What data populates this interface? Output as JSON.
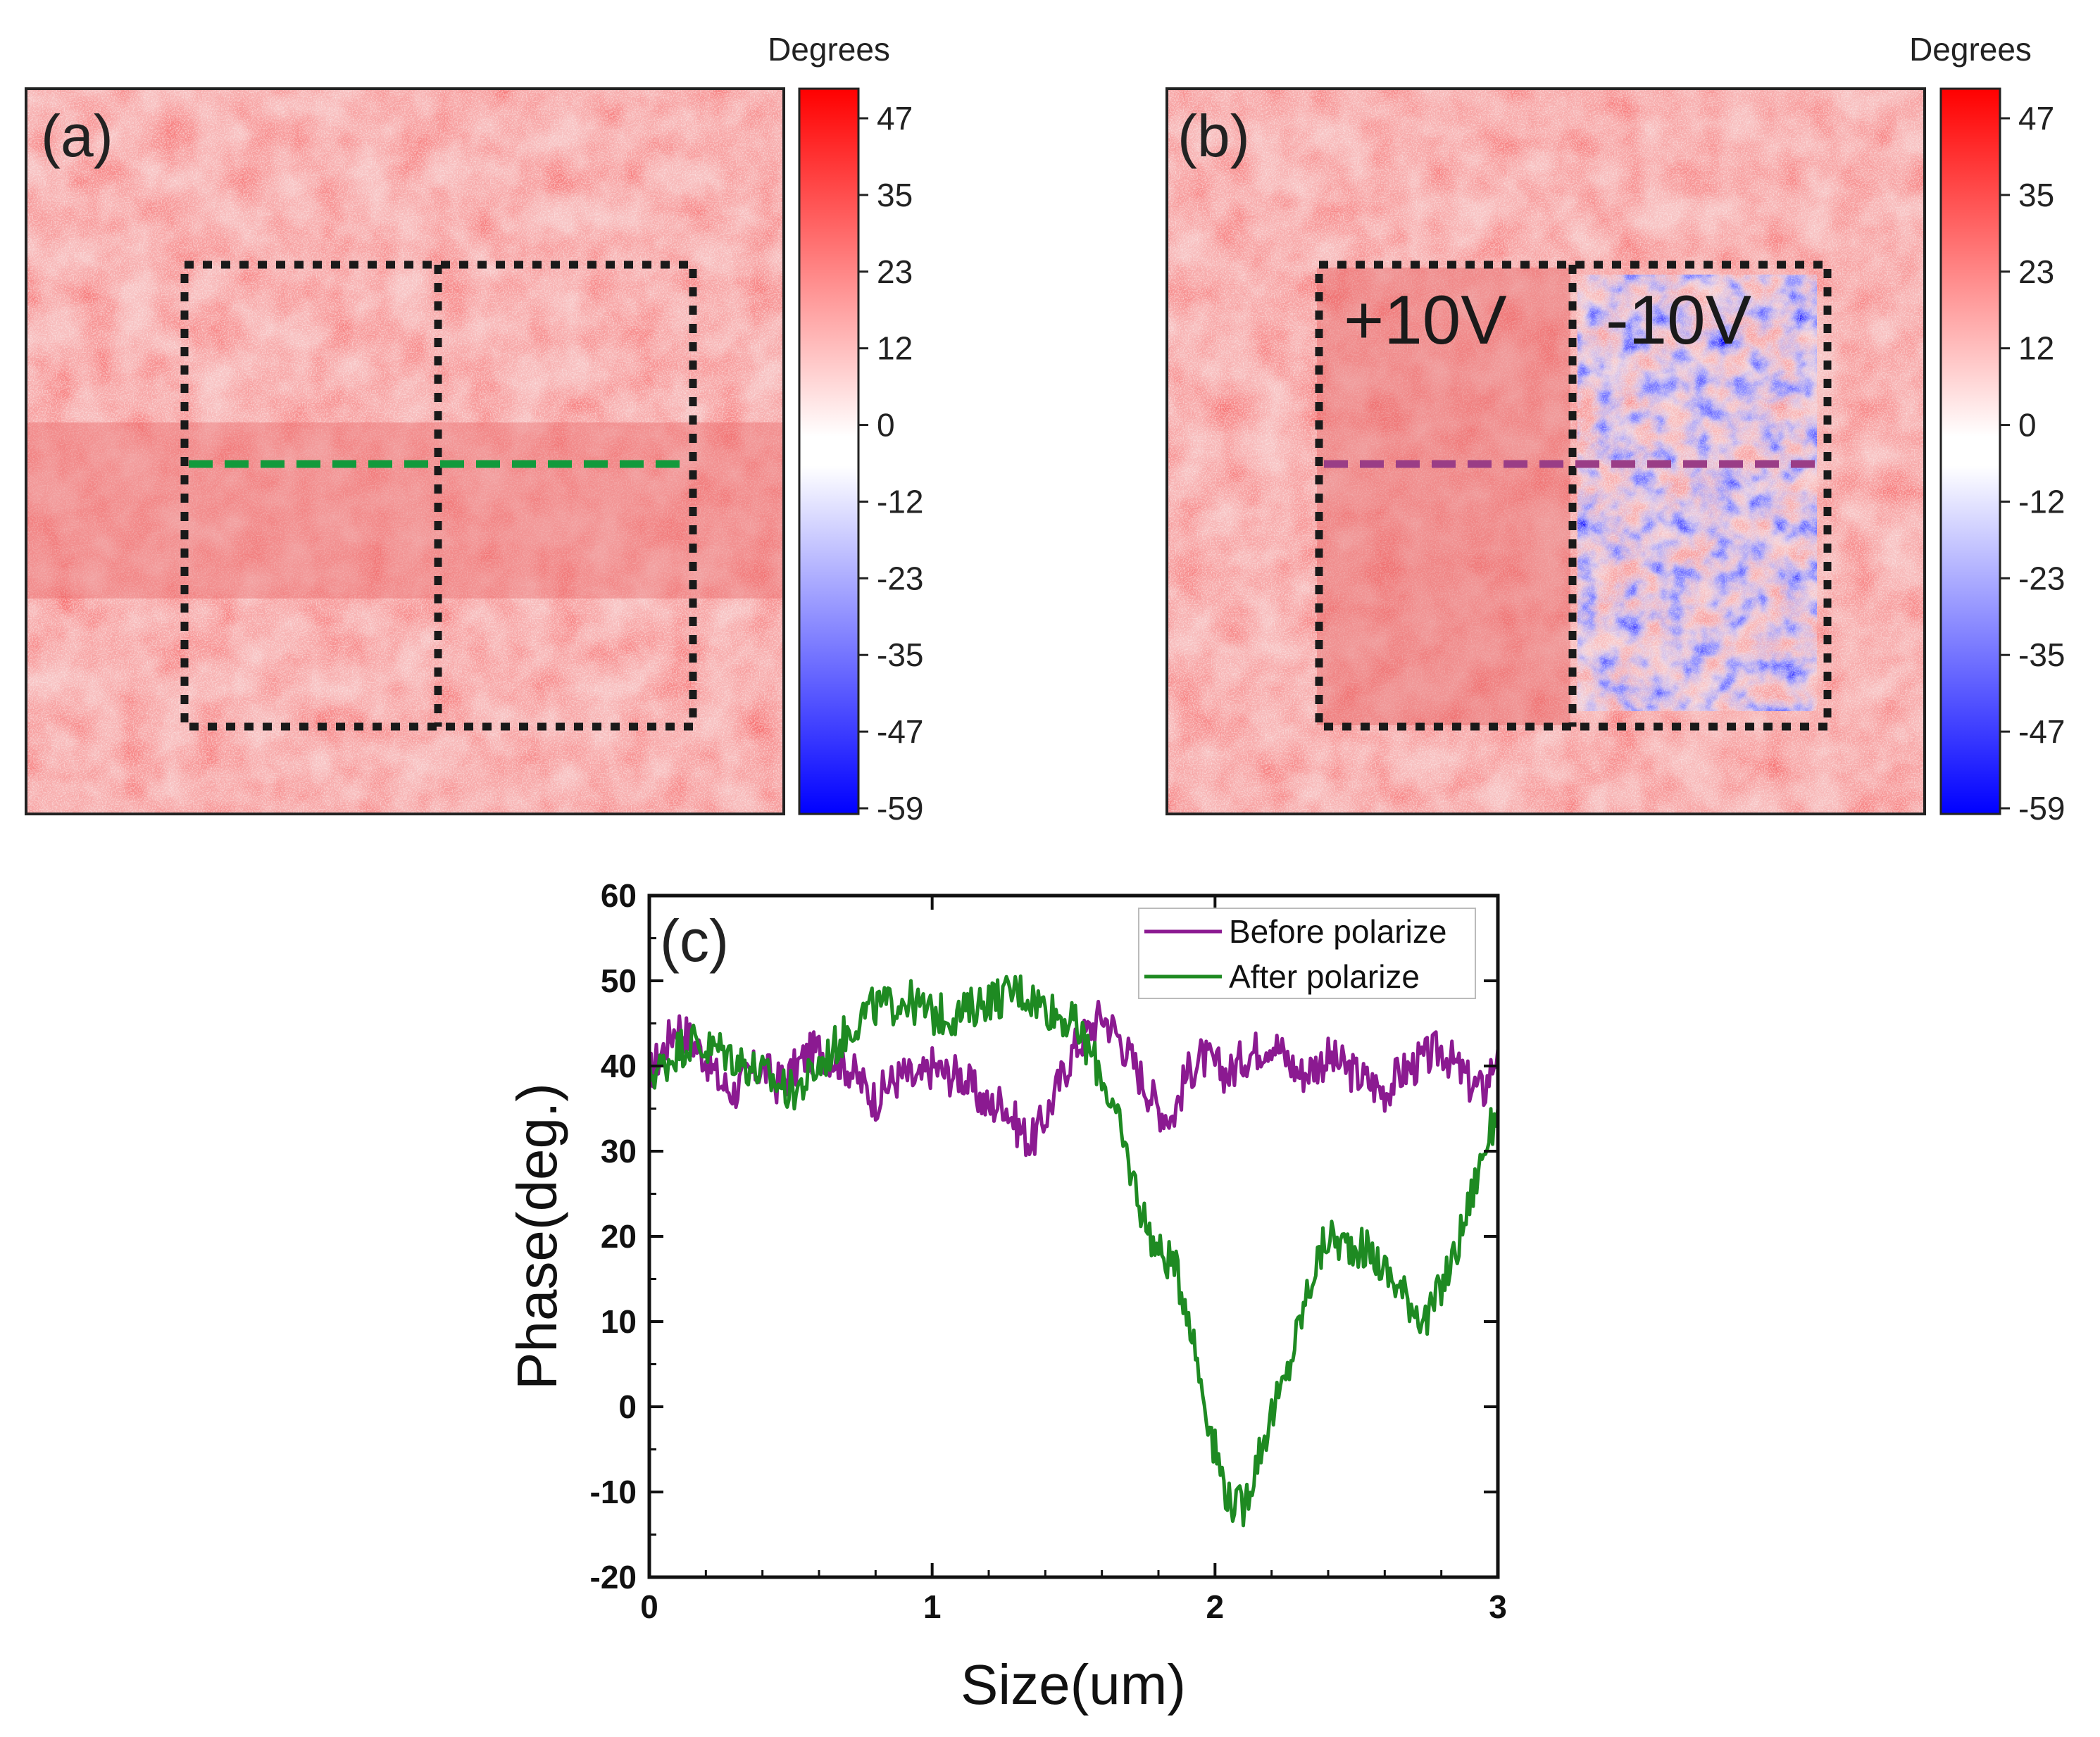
{
  "panels": {
    "a": {
      "label": "(a)",
      "colorbar_title": "Degrees",
      "colorbar_ticks": [
        "47",
        "35",
        "23",
        "12",
        "0",
        "-12",
        "-23",
        "-35",
        "-47",
        "-59"
      ],
      "line_color": "#129a3c"
    },
    "b": {
      "label": "(b)",
      "colorbar_title": "Degrees",
      "colorbar_ticks": [
        "47",
        "35",
        "23",
        "12",
        "0",
        "-12",
        "-23",
        "-35",
        "-47",
        "-59"
      ],
      "region_left_label": "+10V",
      "region_right_label": "-10V",
      "line_color": "#9a3d86"
    },
    "c": {
      "label": "(c)"
    }
  },
  "chart_data": {
    "type": "line",
    "title": "",
    "xlabel": "Size(um)",
    "ylabel": "Phase(deg.)",
    "xlim": [
      0,
      3
    ],
    "ylim": [
      -20,
      60
    ],
    "x_ticks": [
      0,
      1,
      2,
      3
    ],
    "y_ticks": [
      -20,
      -10,
      0,
      10,
      20,
      30,
      40,
      50,
      60
    ],
    "legend_position": "top-right",
    "series": [
      {
        "name": "Before polarize",
        "color": "#8b1a91",
        "x": [
          0,
          0.05,
          0.1,
          0.15,
          0.2,
          0.25,
          0.3,
          0.35,
          0.4,
          0.45,
          0.5,
          0.55,
          0.6,
          0.65,
          0.7,
          0.75,
          0.8,
          0.85,
          0.9,
          0.95,
          1.0,
          1.05,
          1.1,
          1.15,
          1.2,
          1.25,
          1.3,
          1.35,
          1.4,
          1.45,
          1.5,
          1.55,
          1.6,
          1.65,
          1.7,
          1.75,
          1.8,
          1.85,
          1.9,
          1.95,
          2.0,
          2.05,
          2.1,
          2.15,
          2.2,
          2.25,
          2.3,
          2.35,
          2.4,
          2.45,
          2.5,
          2.55,
          2.6,
          2.65,
          2.7,
          2.75,
          2.8,
          2.85,
          2.9,
          2.95,
          3.0
        ],
        "y": [
          39,
          42,
          45,
          43,
          41,
          38,
          37,
          39,
          40,
          38,
          39,
          41,
          42,
          41,
          40,
          38,
          36,
          38,
          39,
          38,
          40,
          39,
          39,
          37,
          35,
          36,
          33,
          31,
          34,
          38,
          42,
          44,
          46,
          44,
          41,
          38,
          35,
          34,
          39,
          41,
          40,
          39,
          41,
          42,
          43,
          41,
          39,
          40,
          41,
          40,
          39,
          38,
          37,
          39,
          40,
          41,
          42,
          40,
          38,
          37,
          42
        ]
      },
      {
        "name": "After polarize",
        "color": "#1e8a22",
        "x": [
          0,
          0.05,
          0.1,
          0.15,
          0.2,
          0.25,
          0.3,
          0.35,
          0.4,
          0.45,
          0.5,
          0.55,
          0.6,
          0.65,
          0.7,
          0.75,
          0.8,
          0.85,
          0.9,
          0.95,
          1.0,
          1.05,
          1.1,
          1.15,
          1.2,
          1.25,
          1.3,
          1.35,
          1.4,
          1.45,
          1.5,
          1.55,
          1.6,
          1.65,
          1.7,
          1.75,
          1.8,
          1.85,
          1.9,
          1.95,
          2.0,
          2.05,
          2.1,
          2.15,
          2.2,
          2.25,
          2.3,
          2.35,
          2.4,
          2.45,
          2.5,
          2.55,
          2.6,
          2.65,
          2.7,
          2.75,
          2.8,
          2.85,
          2.9,
          2.95,
          3.0
        ],
        "y": [
          39,
          40,
          42,
          43,
          42,
          42,
          41,
          40,
          39,
          38,
          37,
          38,
          40,
          42,
          44,
          46,
          47,
          47,
          48,
          47,
          46,
          46,
          46,
          47,
          48,
          48,
          49,
          48,
          47,
          46,
          45,
          42,
          39,
          34,
          28,
          22,
          18,
          17,
          12,
          3,
          -5,
          -11,
          -12,
          -6,
          -1,
          3,
          10,
          16,
          20,
          19,
          19,
          18,
          16,
          14,
          12,
          10,
          14,
          18,
          24,
          30,
          35
        ]
      }
    ]
  }
}
